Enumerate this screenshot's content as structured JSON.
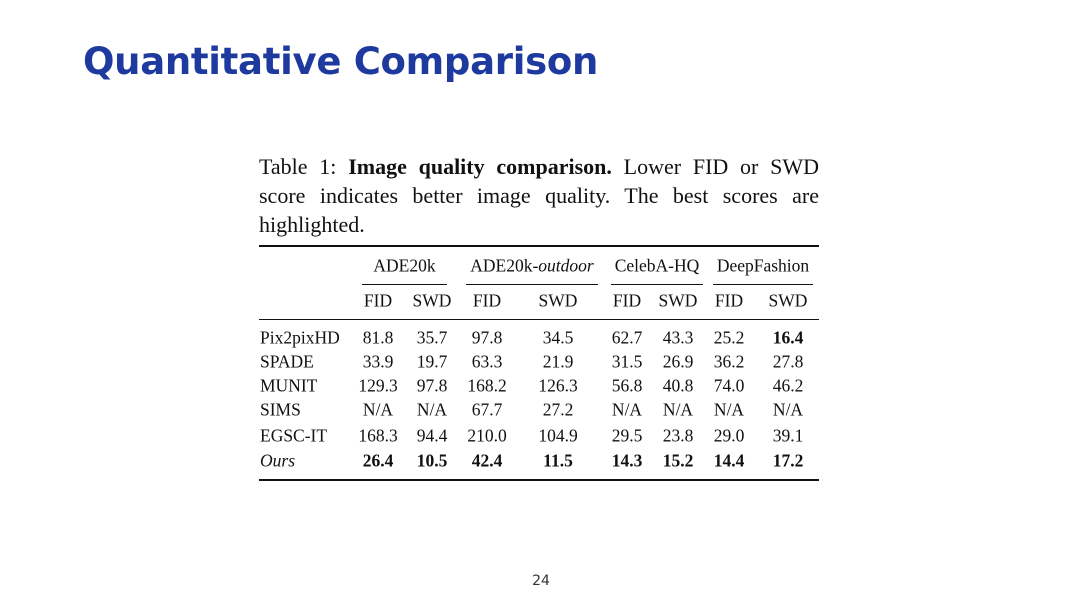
{
  "title": "Quantitative Comparison",
  "caption": {
    "label": "Table 1:",
    "heading": "Image quality comparison.",
    "text": "Lower FID or SWD score indicates better image quality.  The best scores are highlighted."
  },
  "table": {
    "groups": [
      {
        "label": "ADE20k"
      },
      {
        "label": "ADE20k-",
        "italic": "outdoor"
      },
      {
        "label": "CelebA-HQ"
      },
      {
        "label": "DeepFashion"
      }
    ],
    "subheaders": [
      "FID",
      "SWD",
      "FID",
      "SWD",
      "FID",
      "SWD",
      "FID",
      "SWD"
    ],
    "rows": [
      [
        "Pix2pixHD",
        "81.8",
        "35.7",
        "97.8",
        "34.5",
        "62.7",
        "43.3",
        "25.2",
        "16.4"
      ],
      [
        "SPADE",
        "33.9",
        "19.7",
        "63.3",
        "21.9",
        "31.5",
        "26.9",
        "36.2",
        "27.8"
      ],
      [
        "MUNIT",
        "129.3",
        "97.8",
        "168.2",
        "126.3",
        "56.8",
        "40.8",
        "74.0",
        "46.2"
      ],
      [
        "SIMS",
        "N/A",
        "N/A",
        "67.7",
        "27.2",
        "N/A",
        "N/A",
        "N/A",
        "N/A"
      ],
      [
        "EGSC-IT",
        "168.3",
        "94.4",
        "210.0",
        "104.9",
        "29.5",
        "23.8",
        "29.0",
        "39.1"
      ],
      [
        "Ours",
        "26.4",
        "10.5",
        "42.4",
        "11.5",
        "14.3",
        "15.2",
        "14.4",
        "17.2"
      ]
    ]
  },
  "page_number": "24"
}
